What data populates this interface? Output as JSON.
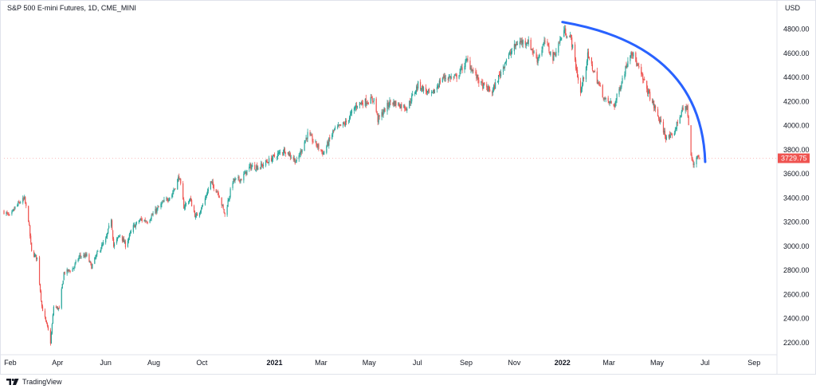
{
  "header": {
    "symbol_title": "S&P 500 E-mini Futures, 1D, CME_MINI",
    "currency": "USD"
  },
  "footer": {
    "brand": "TradingView",
    "logo_icon": "tradingview-logo-icon"
  },
  "colors": {
    "up": "#26a69a",
    "down": "#ef5350",
    "arc": "#2962ff",
    "last_price_bg": "#ef5350"
  },
  "chart_data": {
    "type": "line",
    "title": "S&P 500 E-mini Futures, 1D, CME_MINI",
    "xlabel": "",
    "ylabel": "USD",
    "ylim": [
      2100,
      4950
    ],
    "yticks": [
      2200,
      2400,
      2600,
      2800,
      3000,
      3200,
      3400,
      3600,
      3800,
      4000,
      4200,
      4400,
      4600,
      4800
    ],
    "ytick_labels": [
      "2200.00",
      "2400.00",
      "2600.00",
      "2800.00",
      "3000.00",
      "3200.00",
      "3400.00",
      "3600.00",
      "3800.00",
      "4000.00",
      "4200.00",
      "4400.00",
      "4600.00",
      "4800.00"
    ],
    "xlim": [
      "2020-01-24",
      "2022-09-30"
    ],
    "xticks": [
      {
        "date": "2020-02-01",
        "label": "Feb",
        "year": false
      },
      {
        "date": "2020-04-01",
        "label": "Apr",
        "year": false
      },
      {
        "date": "2020-06-01",
        "label": "Jun",
        "year": false
      },
      {
        "date": "2020-08-01",
        "label": "Aug",
        "year": false
      },
      {
        "date": "2020-10-01",
        "label": "Oct",
        "year": false
      },
      {
        "date": "2021-01-01",
        "label": "2021",
        "year": true
      },
      {
        "date": "2021-03-01",
        "label": "Mar",
        "year": false
      },
      {
        "date": "2021-05-01",
        "label": "May",
        "year": false
      },
      {
        "date": "2021-07-01",
        "label": "Jul",
        "year": false
      },
      {
        "date": "2021-09-01",
        "label": "Sep",
        "year": false
      },
      {
        "date": "2021-11-01",
        "label": "Nov",
        "year": false
      },
      {
        "date": "2022-01-01",
        "label": "2022",
        "year": true
      },
      {
        "date": "2022-03-01",
        "label": "Mar",
        "year": false
      },
      {
        "date": "2022-05-01",
        "label": "May",
        "year": false
      },
      {
        "date": "2022-07-01",
        "label": "Jul",
        "year": false
      },
      {
        "date": "2022-09-01",
        "label": "Sep",
        "year": false
      }
    ],
    "last_price": 3729.75,
    "last_price_label": "3729.75",
    "series": [
      {
        "values": [
          [
            "2020-01-24",
            3290
          ],
          [
            "2020-02-01",
            3240
          ],
          [
            "2020-02-07",
            3320
          ],
          [
            "2020-02-14",
            3370
          ],
          [
            "2020-02-19",
            3390
          ],
          [
            "2020-02-24",
            3220
          ],
          [
            "2020-02-28",
            2950
          ],
          [
            "2020-03-06",
            2900
          ],
          [
            "2020-03-12",
            2500
          ],
          [
            "2020-03-16",
            2400
          ],
          [
            "2020-03-20",
            2300
          ],
          [
            "2020-03-23",
            2200
          ],
          [
            "2020-03-27",
            2500
          ],
          [
            "2020-04-03",
            2480
          ],
          [
            "2020-04-09",
            2780
          ],
          [
            "2020-04-20",
            2810
          ],
          [
            "2020-04-29",
            2920
          ],
          [
            "2020-05-08",
            2920
          ],
          [
            "2020-05-14",
            2830
          ],
          [
            "2020-05-22",
            2950
          ],
          [
            "2020-06-01",
            3050
          ],
          [
            "2020-06-08",
            3230
          ],
          [
            "2020-06-11",
            3000
          ],
          [
            "2020-06-19",
            3100
          ],
          [
            "2020-06-26",
            3010
          ],
          [
            "2020-07-06",
            3160
          ],
          [
            "2020-07-15",
            3220
          ],
          [
            "2020-07-24",
            3210
          ],
          [
            "2020-08-03",
            3290
          ],
          [
            "2020-08-14",
            3370
          ],
          [
            "2020-08-24",
            3430
          ],
          [
            "2020-09-02",
            3580
          ],
          [
            "2020-09-08",
            3330
          ],
          [
            "2020-09-16",
            3390
          ],
          [
            "2020-09-23",
            3240
          ],
          [
            "2020-10-02",
            3340
          ],
          [
            "2020-10-12",
            3530
          ],
          [
            "2020-10-22",
            3440
          ],
          [
            "2020-10-30",
            3260
          ],
          [
            "2020-11-09",
            3540
          ],
          [
            "2020-11-20",
            3560
          ],
          [
            "2020-12-01",
            3660
          ],
          [
            "2020-12-14",
            3660
          ],
          [
            "2020-12-31",
            3740
          ],
          [
            "2021-01-14",
            3800
          ],
          [
            "2021-01-29",
            3700
          ],
          [
            "2021-02-12",
            3930
          ],
          [
            "2021-03-04",
            3770
          ],
          [
            "2021-03-17",
            3960
          ],
          [
            "2021-04-01",
            4020
          ],
          [
            "2021-04-16",
            4180
          ],
          [
            "2021-05-07",
            4220
          ],
          [
            "2021-05-12",
            4050
          ],
          [
            "2021-05-28",
            4200
          ],
          [
            "2021-06-18",
            4150
          ],
          [
            "2021-07-02",
            4340
          ],
          [
            "2021-07-19",
            4250
          ],
          [
            "2021-08-02",
            4400
          ],
          [
            "2021-08-19",
            4400
          ],
          [
            "2021-09-02",
            4540
          ],
          [
            "2021-09-20",
            4340
          ],
          [
            "2021-10-04",
            4280
          ],
          [
            "2021-10-21",
            4540
          ],
          [
            "2021-11-05",
            4690
          ],
          [
            "2021-11-18",
            4700
          ],
          [
            "2021-11-30",
            4550
          ],
          [
            "2021-12-10",
            4700
          ],
          [
            "2021-12-20",
            4560
          ],
          [
            "2022-01-03",
            4790
          ],
          [
            "2022-01-12",
            4720
          ],
          [
            "2022-01-24",
            4270
          ],
          [
            "2022-02-02",
            4580
          ],
          [
            "2022-02-24",
            4210
          ],
          [
            "2022-03-08",
            4170
          ],
          [
            "2022-03-29",
            4630
          ],
          [
            "2022-04-12",
            4400
          ],
          [
            "2022-04-29",
            4130
          ],
          [
            "2022-05-12",
            3910
          ],
          [
            "2022-05-20",
            3900
          ],
          [
            "2022-06-01",
            4120
          ],
          [
            "2022-06-08",
            4160
          ],
          [
            "2022-06-13",
            3750
          ],
          [
            "2022-06-16",
            3670
          ],
          [
            "2022-06-21",
            3760
          ],
          [
            "2022-06-24",
            3730
          ]
        ]
      }
    ],
    "annotations": [
      {
        "type": "arc",
        "start": [
          "2022-01-01",
          4860
        ],
        "end": [
          "2022-07-01",
          3700
        ]
      }
    ]
  }
}
